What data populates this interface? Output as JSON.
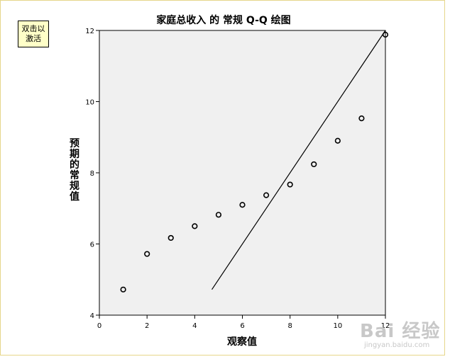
{
  "activate_button": {
    "label": "双击以激活"
  },
  "watermark": {
    "brand": "Bai  经验",
    "url": "jingyan.baidu.com"
  },
  "chart_data": {
    "type": "scatter",
    "title": "家庭总收入 的 常规 Q-Q 绘图",
    "xlabel": "观察值",
    "ylabel": "预期的常规值",
    "xlim": [
      0,
      12
    ],
    "ylim": [
      4,
      12
    ],
    "xticks": [
      "0",
      "2",
      "4",
      "6",
      "8",
      "10",
      "12"
    ],
    "yticks": [
      "4",
      "6",
      "8",
      "10",
      "12"
    ],
    "points": [
      [
        1,
        4.72
      ],
      [
        2,
        5.72
      ],
      [
        3,
        6.17
      ],
      [
        4,
        6.5
      ],
      [
        5,
        6.82
      ],
      [
        6,
        7.1
      ],
      [
        7,
        7.37
      ],
      [
        8,
        7.67
      ],
      [
        9,
        8.24
      ],
      [
        10,
        8.9
      ],
      [
        11,
        9.53
      ],
      [
        12,
        11.88
      ]
    ],
    "reference_line": [
      [
        4.72,
        4.72
      ],
      [
        12,
        12
      ]
    ],
    "plot_background": "#f0f0f0",
    "grid": false
  }
}
